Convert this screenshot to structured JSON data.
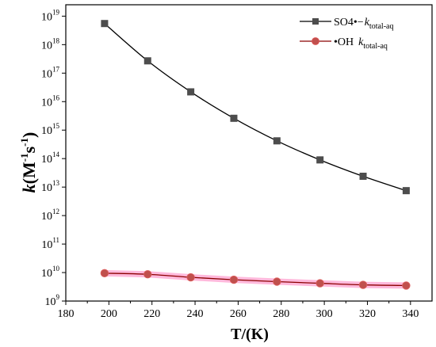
{
  "chart_data": {
    "type": "line",
    "xlabel": "T/(K)",
    "ylabel_k": "k",
    "ylabel_rest": "(M",
    "ylabel_exp1": "-1",
    "ylabel_s": "s",
    "ylabel_exp2": "-1",
    "ylabel_close": ")",
    "xlim": [
      180,
      350
    ],
    "ylim_log10": [
      9,
      19.4
    ],
    "y_scale": "log",
    "x_ticks": [
      180,
      200,
      220,
      240,
      260,
      280,
      300,
      320,
      340
    ],
    "y_ticks": [
      9,
      10,
      11,
      12,
      13,
      14,
      15,
      16,
      17,
      18,
      19
    ],
    "y_tick_base": "10",
    "legend_position": "top-right",
    "series": [
      {
        "name_main": "SO4•−",
        "name_sub": "total-aq",
        "name_k": "k",
        "color": "#000000",
        "marker_color": "#4d4d4d",
        "marker": "square",
        "x": [
          198,
          218,
          238,
          258,
          278,
          298,
          318,
          338
        ],
        "y": [
          5.5e+18,
          2.7e+17,
          2.2e+16,
          2600000000000000.0,
          420000000000000.0,
          90000000000000.0,
          24000000000000.0,
          7500000000000.0
        ]
      },
      {
        "name_main": "•OH",
        "name_sub": "total-aq",
        "name_k": "k",
        "color": "#8b0000",
        "marker_color": "#c0504d",
        "marker": "circle",
        "band_color": "#ff80c0",
        "x": [
          198,
          218,
          238,
          258,
          278,
          298,
          318,
          338
        ],
        "y": [
          9500000000.0,
          8700000000.0,
          6800000000.0,
          5600000000.0,
          4800000000.0,
          4200000000.0,
          3700000000.0,
          3500000000.0
        ]
      }
    ]
  }
}
